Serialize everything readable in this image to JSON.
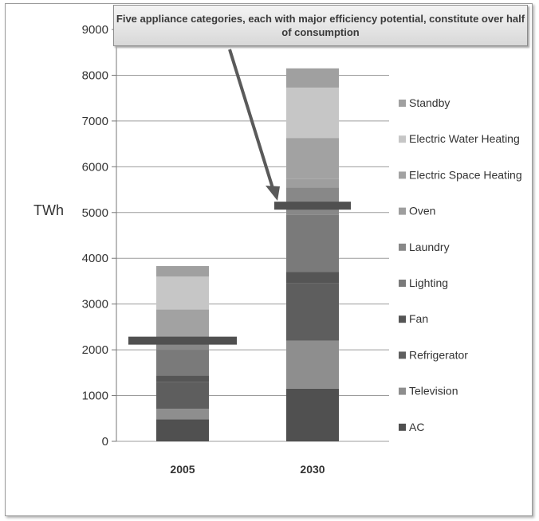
{
  "chart_data": {
    "type": "bar",
    "stacked": true,
    "title": "",
    "xlabel": "",
    "ylabel": "TWh",
    "ylim": [
      0,
      9000
    ],
    "yticks": [
      0,
      1000,
      2000,
      3000,
      4000,
      5000,
      6000,
      7000,
      8000,
      9000
    ],
    "grid": true,
    "legend_position": "right",
    "categories": [
      "2005",
      "2030"
    ],
    "series": [
      {
        "name": "AC",
        "color": "#505050",
        "values": [
          480,
          1150
        ]
      },
      {
        "name": "Television",
        "color": "#8e8e8e",
        "values": [
          230,
          1050
        ]
      },
      {
        "name": "Refrigerator",
        "color": "#5e5e5e",
        "values": [
          590,
          1250
        ]
      },
      {
        "name": "Fan",
        "color": "#555555",
        "values": [
          140,
          250
        ]
      },
      {
        "name": "Lighting",
        "color": "#7a7a7a",
        "values": [
          560,
          1250
        ]
      },
      {
        "name": "Laundry",
        "color": "#888888",
        "values": [
          200,
          600
        ]
      },
      {
        "name": "Oven",
        "color": "#9e9e9e",
        "values": [
          80,
          180
        ]
      },
      {
        "name": "Electric Space Heating",
        "color": "#a2a2a2",
        "values": [
          600,
          900
        ]
      },
      {
        "name": "Electric Water Heating",
        "color": "#c6c6c6",
        "values": [
          720,
          1100
        ]
      },
      {
        "name": "Standby",
        "color": "#a0a0a0",
        "values": [
          230,
          420
        ]
      }
    ],
    "threshold_marks": [
      {
        "category": "2005",
        "value": 2200
      },
      {
        "category": "2030",
        "value": 5150
      }
    ],
    "annotation": "Five appliance categories, each with major efficiency potential, constitute over half of consumption"
  }
}
